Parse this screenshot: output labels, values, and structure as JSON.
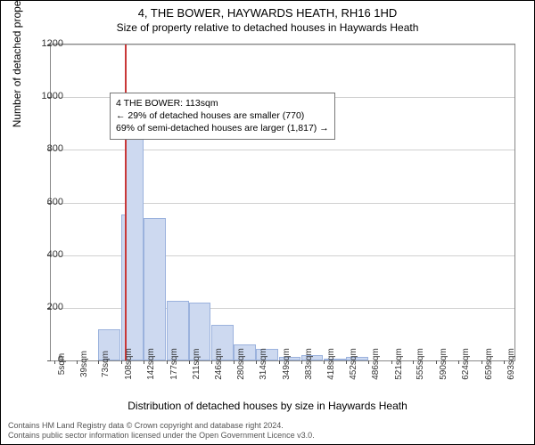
{
  "title": "4, THE BOWER, HAYWARDS HEATH, RH16 1HD",
  "subtitle": "Size of property relative to detached houses in Haywards Heath",
  "ylabel": "Number of detached properties",
  "xlabel": "Distribution of detached houses by size in Haywards Heath",
  "chart": {
    "type": "histogram",
    "bar_color": "#cdd9f0",
    "bar_border": "#9bb2dd",
    "grid_color": "#d0d0d0",
    "background_color": "#ffffff",
    "ref_line_color": "#c93838",
    "ref_line_x": 113,
    "ylim": [
      0,
      1200
    ],
    "yticks": [
      0,
      200,
      400,
      600,
      800,
      1000,
      1200
    ],
    "xlim": [
      0,
      710
    ],
    "xticks": [
      5,
      39,
      73,
      108,
      142,
      177,
      211,
      246,
      280,
      314,
      349,
      383,
      418,
      452,
      486,
      521,
      555,
      590,
      624,
      659,
      693
    ],
    "xtick_suffix": "sqm",
    "bin_width": 34,
    "bins": [
      {
        "x_start": 5,
        "count": 0
      },
      {
        "x_start": 39,
        "count": 0
      },
      {
        "x_start": 73,
        "count": 120
      },
      {
        "x_start": 108,
        "count": 555
      },
      {
        "x_start": 113,
        "count": 915,
        "width_override": 29
      },
      {
        "x_start": 142,
        "count": 540
      },
      {
        "x_start": 177,
        "count": 225
      },
      {
        "x_start": 211,
        "count": 220
      },
      {
        "x_start": 246,
        "count": 135
      },
      {
        "x_start": 280,
        "count": 60
      },
      {
        "x_start": 314,
        "count": 45
      },
      {
        "x_start": 349,
        "count": 15
      },
      {
        "x_start": 383,
        "count": 20
      },
      {
        "x_start": 418,
        "count": 5
      },
      {
        "x_start": 452,
        "count": 15
      },
      {
        "x_start": 486,
        "count": 0
      },
      {
        "x_start": 521,
        "count": 0
      },
      {
        "x_start": 555,
        "count": 0
      },
      {
        "x_start": 590,
        "count": 0
      },
      {
        "x_start": 624,
        "count": 0
      },
      {
        "x_start": 659,
        "count": 0
      }
    ]
  },
  "info_box": {
    "line1": "4 THE BOWER: 113sqm",
    "line2": "← 29% of detached houses are smaller (770)",
    "line3": "69% of semi-detached houses are larger (1,817) →"
  },
  "footer": {
    "line1": "Contains HM Land Registry data © Crown copyright and database right 2024.",
    "line2": "Contains public sector information licensed under the Open Government Licence v3.0."
  }
}
